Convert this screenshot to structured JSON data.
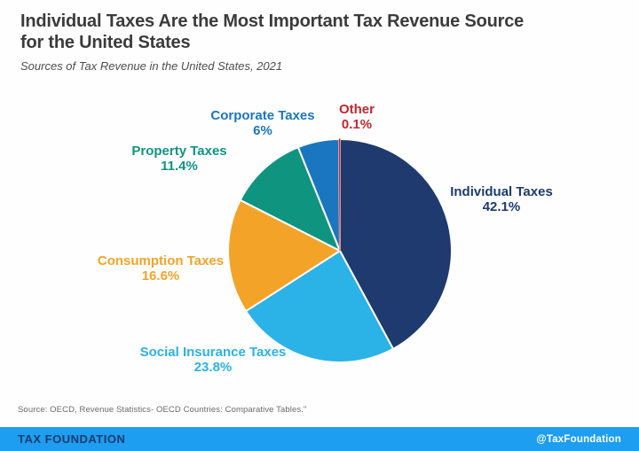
{
  "header": {
    "title_line1": "Individual Taxes Are the Most Important Tax Revenue Source",
    "title_line2": "for the United States",
    "subtitle": "Sources of Tax Revenue in the United States, 2021"
  },
  "chart_data": {
    "type": "pie",
    "title": "Sources of Tax Revenue in the United States, 2021",
    "unit": "%",
    "start_angle": "12-o'clock",
    "direction": "clockwise",
    "slices": [
      {
        "label": "Individual Taxes",
        "value": 42.1,
        "display": "42.1%",
        "color": "#1e3a6e"
      },
      {
        "label": "Social Insurance Taxes",
        "value": 23.8,
        "display": "23.8%",
        "color": "#2bb2e7"
      },
      {
        "label": "Consumption Taxes",
        "value": 16.6,
        "display": "16.6%",
        "color": "#f4a329"
      },
      {
        "label": "Property Taxes",
        "value": 11.4,
        "display": "11.4%",
        "color": "#0f9480"
      },
      {
        "label": "Corporate Taxes",
        "value": 6,
        "display": "6%",
        "color": "#1b76c0"
      },
      {
        "label": "Other",
        "value": 0.1,
        "display": "0.1%",
        "color": "#c1272d"
      }
    ]
  },
  "footer": {
    "source": "Source: OECD, Revenue Statistics- OECD Countries: Comparative Tables.\"",
    "brand": "TAX FOUNDATION",
    "handle": "@TaxFoundation"
  }
}
